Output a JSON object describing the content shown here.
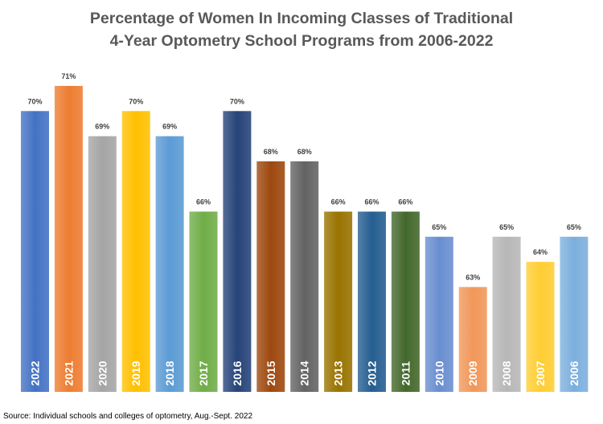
{
  "chart_data": {
    "type": "bar",
    "title_lines": [
      "Percentage of Women In Incoming Classes of Traditional",
      "4-Year Optometry School Programs from 2006-2022"
    ],
    "categories": [
      "2022",
      "2021",
      "2020",
      "2019",
      "2018",
      "2017",
      "2016",
      "2015",
      "2014",
      "2013",
      "2012",
      "2011",
      "2010",
      "2009",
      "2008",
      "2007",
      "2006"
    ],
    "values": [
      70,
      71,
      69,
      70,
      69,
      66,
      70,
      68,
      68,
      66,
      66,
      66,
      65,
      63,
      65,
      64,
      65
    ],
    "data_labels": [
      "70%",
      "71%",
      "69%",
      "70%",
      "69%",
      "66%",
      "70%",
      "68%",
      "68%",
      "66%",
      "66%",
      "66%",
      "65%",
      "63%",
      "65%",
      "64%",
      "65%"
    ],
    "colors": [
      "#4472C4",
      "#ED7D31",
      "#A5A5A5",
      "#FFC000",
      "#5B9BD5",
      "#70AD47",
      "#264478",
      "#9E480E",
      "#636363",
      "#997300",
      "#255E91",
      "#43682B",
      "#698ED0",
      "#F1975A",
      "#B7B7B7",
      "#FFCD33",
      "#7CAFDD"
    ],
    "xlabel": "",
    "ylabel": "",
    "legend": "none",
    "grid": false
  },
  "source": "Source: Individual schools and colleges of optometry, Aug.-Sept. 2022"
}
